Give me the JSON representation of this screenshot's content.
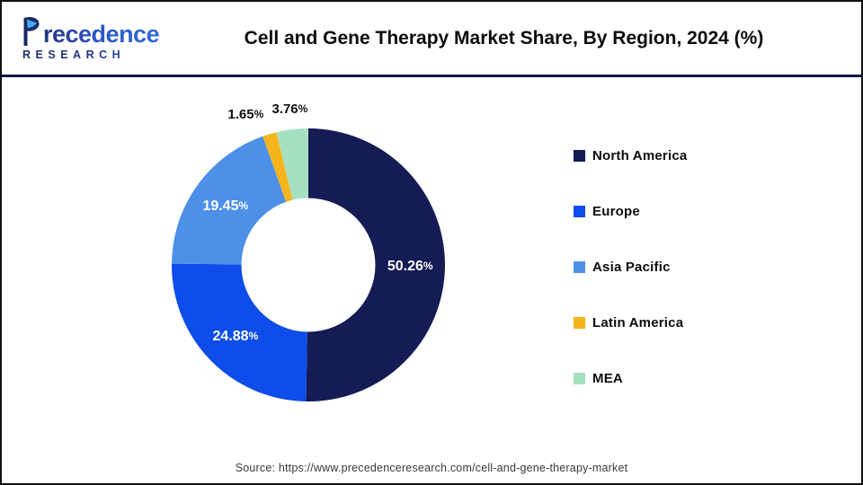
{
  "brand": {
    "name": "Precedence",
    "name_rest": "recedence",
    "subtitle": "RESEARCH"
  },
  "header": {
    "title": "Cell and Gene Therapy Market Share, By Region, 2024 (%)"
  },
  "chart_data": {
    "type": "pie",
    "subtype": "donut",
    "title": "Cell and Gene Therapy Market Share, By Region, 2024 (%)",
    "categories": [
      "North America",
      "Europe",
      "Asia Pacific",
      "Latin America",
      "MEA"
    ],
    "values": [
      50.26,
      24.88,
      19.45,
      1.65,
      3.76
    ],
    "labels": [
      "50.26%",
      "24.88%",
      "19.45%",
      "1.65%",
      "3.76%"
    ],
    "colors": [
      "#141b55",
      "#0e4dea",
      "#4d90e8",
      "#f5b41c",
      "#a7e0c1"
    ],
    "unit": "%",
    "start_angle_deg": 0,
    "direction": "clockwise",
    "inner_radius_ratio": 0.49,
    "legend_position": "right",
    "label_placement": "inside for slices >= 5%, outside above for smaller slices"
  },
  "footer": {
    "source": "Source: https://www.precedenceresearch.com/cell-and-gene-therapy-market"
  }
}
